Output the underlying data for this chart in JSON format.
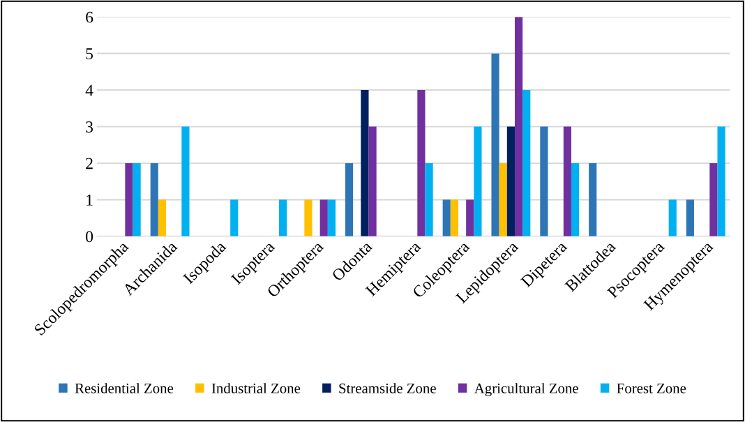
{
  "chart_data": {
    "type": "bar",
    "categories": [
      "Scolopedromorpha",
      "Archanida",
      "Isopoda",
      "Isoptera",
      "Orthoptera",
      "Odonta",
      "Hemiptera",
      "Coleoptera",
      "Lepidoptera",
      "Dipetera",
      "Blattodea",
      "Psocoptera",
      "Hymenoptera"
    ],
    "series": [
      {
        "name": "Residential Zone",
        "color": "#2e75b6",
        "values": [
          0,
          2,
          0,
          0,
          0,
          2,
          0,
          1,
          5,
          3,
          2,
          0,
          1
        ]
      },
      {
        "name": "Industrial Zone",
        "color": "#ffc000",
        "values": [
          0,
          1,
          0,
          0,
          1,
          0,
          0,
          1,
          2,
          0,
          0,
          0,
          0
        ]
      },
      {
        "name": "Streamside Zone",
        "color": "#002060",
        "values": [
          0,
          0,
          0,
          0,
          0,
          4,
          0,
          0,
          3,
          0,
          0,
          0,
          0
        ]
      },
      {
        "name": "Agricultural Zone",
        "color": "#7030a0",
        "values": [
          2,
          0,
          0,
          0,
          1,
          3,
          4,
          1,
          6,
          3,
          0,
          0,
          2
        ]
      },
      {
        "name": "Forest Zone",
        "color": "#00b0f0",
        "values": [
          2,
          3,
          1,
          1,
          1,
          0,
          2,
          3,
          4,
          2,
          0,
          1,
          3
        ]
      }
    ],
    "ylim": [
      0,
      6
    ],
    "yticks": [
      0,
      1,
      2,
      3,
      4,
      5,
      6
    ],
    "grid": "y",
    "legend": "bottom"
  }
}
